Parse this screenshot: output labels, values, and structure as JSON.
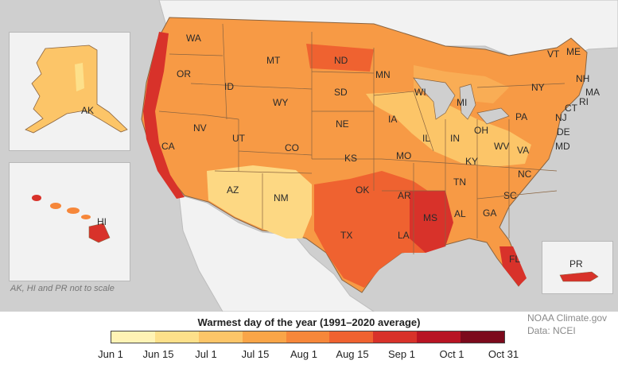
{
  "map": {
    "states": [
      {
        "abbr": "WA"
      },
      {
        "abbr": "OR"
      },
      {
        "abbr": "CA"
      },
      {
        "abbr": "ID"
      },
      {
        "abbr": "NV"
      },
      {
        "abbr": "MT"
      },
      {
        "abbr": "WY"
      },
      {
        "abbr": "UT"
      },
      {
        "abbr": "AZ"
      },
      {
        "abbr": "CO"
      },
      {
        "abbr": "NM"
      },
      {
        "abbr": "ND"
      },
      {
        "abbr": "SD"
      },
      {
        "abbr": "NE"
      },
      {
        "abbr": "KS"
      },
      {
        "abbr": "OK"
      },
      {
        "abbr": "TX"
      },
      {
        "abbr": "MN"
      },
      {
        "abbr": "IA"
      },
      {
        "abbr": "MO"
      },
      {
        "abbr": "AR"
      },
      {
        "abbr": "LA"
      },
      {
        "abbr": "WI"
      },
      {
        "abbr": "IL"
      },
      {
        "abbr": "MI"
      },
      {
        "abbr": "IN"
      },
      {
        "abbr": "OH"
      },
      {
        "abbr": "KY"
      },
      {
        "abbr": "TN"
      },
      {
        "abbr": "MS"
      },
      {
        "abbr": "AL"
      },
      {
        "abbr": "GA"
      },
      {
        "abbr": "FL"
      },
      {
        "abbr": "SC"
      },
      {
        "abbr": "NC"
      },
      {
        "abbr": "VA"
      },
      {
        "abbr": "WV"
      },
      {
        "abbr": "PA"
      },
      {
        "abbr": "NY"
      },
      {
        "abbr": "VT"
      },
      {
        "abbr": "ME"
      },
      {
        "abbr": "NH"
      },
      {
        "abbr": "MA"
      },
      {
        "abbr": "RI"
      },
      {
        "abbr": "CT"
      },
      {
        "abbr": "NJ"
      },
      {
        "abbr": "DE"
      },
      {
        "abbr": "MD"
      }
    ],
    "insets": {
      "alaska_label": "AK",
      "hawaii_label": "HI",
      "puerto_rico_label": "PR",
      "note": "AK, HI and PR not to scale"
    }
  },
  "legend": {
    "title": "Warmest day of the year (1991–2020 average)",
    "ticks": [
      "Jun 1",
      "Jun 15",
      "Jul 1",
      "Jul 15",
      "Aug 1",
      "Aug 15",
      "Sep 1",
      "Oct 1",
      "Oct 31"
    ],
    "colors": [
      "#fff3b5",
      "#fde08a",
      "#fcc568",
      "#f9a548",
      "#f6873a",
      "#ef6230",
      "#d8322a",
      "#b81424",
      "#7c0a1c"
    ]
  },
  "credits": {
    "line1": "NOAA Climate.gov",
    "line2": "Data: NCEI"
  },
  "colors": {
    "ocean": "#cfcfcf",
    "land_other": "#f2f2f2",
    "state_border": "#7a5a40"
  }
}
